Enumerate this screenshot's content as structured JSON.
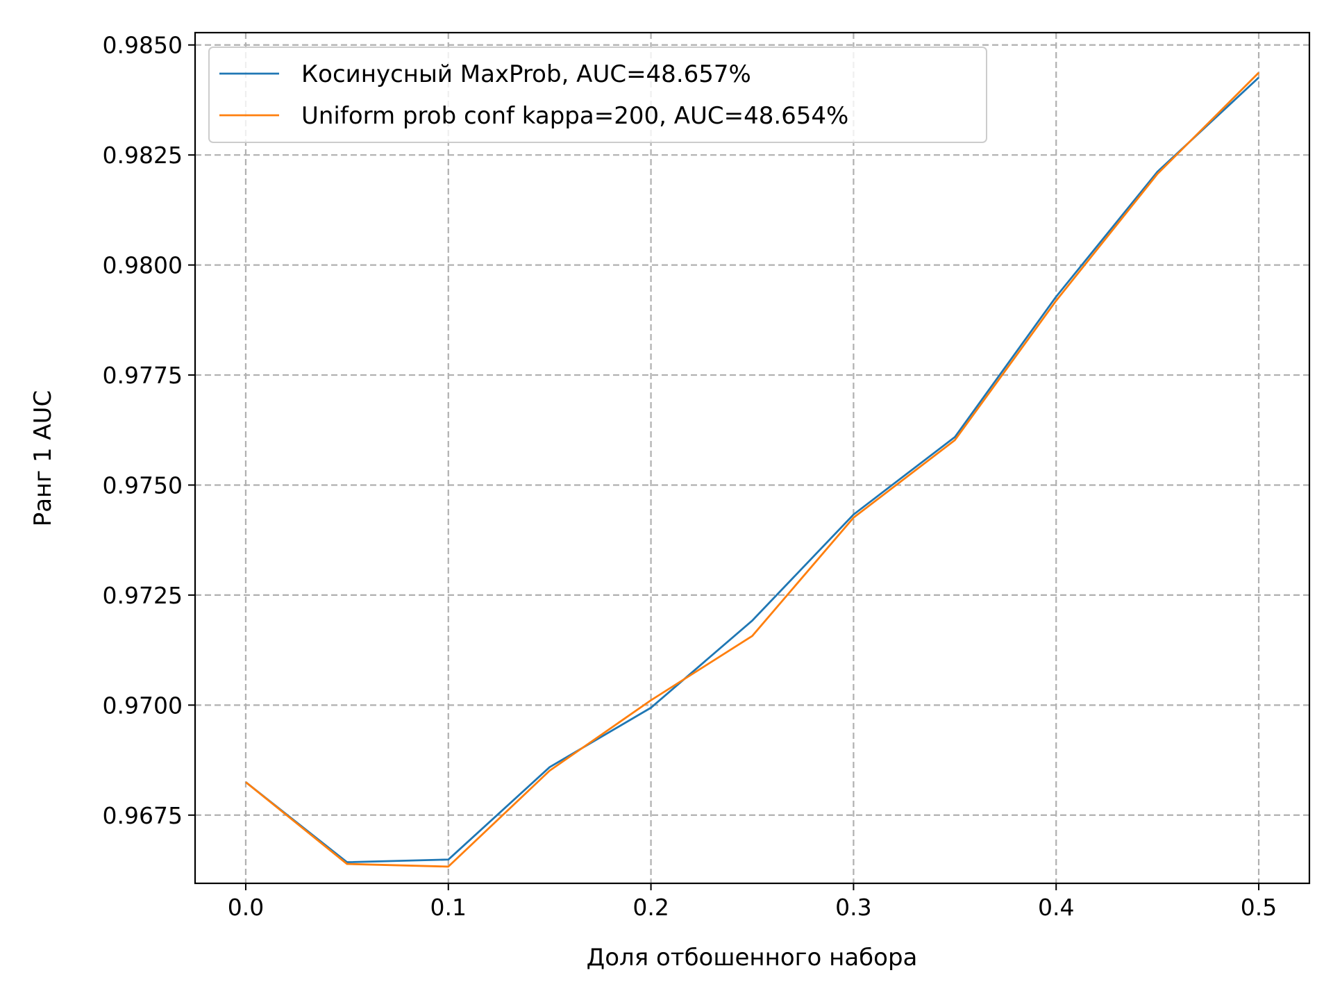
{
  "chart_data": {
    "type": "line",
    "title": "",
    "xlabel": "Доля отбошенного набора",
    "ylabel": "Ранг 1 AUC",
    "xlim": [
      -0.025,
      0.525
    ],
    "ylim": [
      0.96595,
      0.98528
    ],
    "xticks": [
      0.0,
      0.1,
      0.2,
      0.3,
      0.4,
      0.5
    ],
    "xtick_labels": [
      "0.0",
      "0.1",
      "0.2",
      "0.3",
      "0.4",
      "0.5"
    ],
    "yticks": [
      0.9675,
      0.97,
      0.9725,
      0.975,
      0.9775,
      0.98,
      0.9825,
      0.985
    ],
    "ytick_labels": [
      "0.9675",
      "0.9700",
      "0.9725",
      "0.9750",
      "0.9775",
      "0.9800",
      "0.9825",
      "0.9850"
    ],
    "grid": true,
    "legend_position": "upper-left",
    "x": [
      0.0,
      0.05,
      0.1,
      0.15,
      0.2,
      0.25,
      0.3,
      0.35,
      0.4,
      0.45,
      0.5
    ],
    "series": [
      {
        "name": "Косинусный MaxProb, AUC=48.657%",
        "color": "#1f77b4",
        "values": [
          0.96825,
          0.96643,
          0.96649,
          0.96859,
          0.96994,
          0.97192,
          0.97433,
          0.97609,
          0.97928,
          0.98212,
          0.98426
        ]
      },
      {
        "name": "Uniform prob conf kappa=200, AUC=48.654%",
        "color": "#ff7f0e",
        "values": [
          0.96825,
          0.96639,
          0.96633,
          0.96851,
          0.97011,
          0.97157,
          0.97426,
          0.97602,
          0.97919,
          0.98207,
          0.98437
        ]
      }
    ]
  }
}
